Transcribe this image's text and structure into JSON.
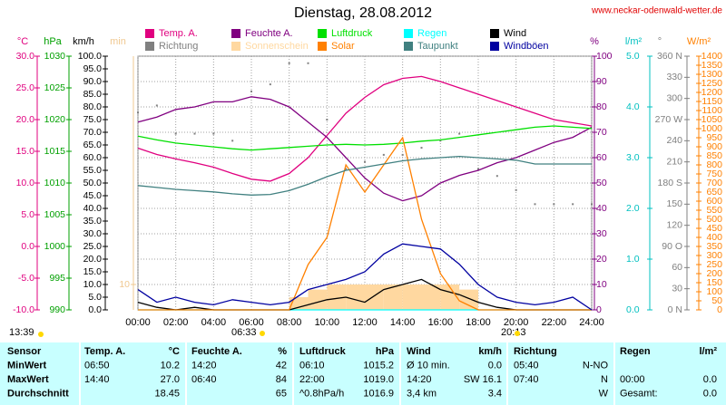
{
  "chart_data": {
    "type": "multi-line",
    "title": "Dienstag, 28.08.2012",
    "xlim": [
      0,
      24
    ],
    "xticks": [
      {
        "value": 0,
        "label": "00:00"
      },
      {
        "value": 2,
        "label": "02:00"
      },
      {
        "value": 4,
        "label": "04:00"
      },
      {
        "value": 6,
        "label": "06:00"
      },
      {
        "value": 8,
        "label": "08:00"
      },
      {
        "value": 10,
        "label": "10:00"
      },
      {
        "value": 12,
        "label": "12:00"
      },
      {
        "value": 14,
        "label": "14:00"
      },
      {
        "value": 16,
        "label": "16:00"
      },
      {
        "value": 18,
        "label": "18:00"
      },
      {
        "value": 20,
        "label": "20:00"
      },
      {
        "value": 22,
        "label": "22:00"
      },
      {
        "value": 24,
        "label": "24:00"
      }
    ],
    "grid": true,
    "x": [
      0,
      1,
      2,
      3,
      4,
      5,
      6,
      7,
      8,
      9,
      10,
      11,
      12,
      13,
      14,
      15,
      16,
      17,
      18,
      19,
      20,
      21,
      22,
      23,
      24
    ],
    "axes": [
      {
        "id": "temp",
        "label": "°C",
        "color": "#e0007f",
        "lim": [
          -10,
          30
        ],
        "ticks": [
          {
            "value": -10,
            "label": "-10.0"
          },
          {
            "value": -5,
            "label": "-5.0"
          },
          {
            "value": 0,
            "label": "0.0"
          },
          {
            "value": 5,
            "label": "5.0"
          },
          {
            "value": 10,
            "label": "10.0"
          },
          {
            "value": 15,
            "label": "15.0"
          },
          {
            "value": 20,
            "label": "20.0"
          },
          {
            "value": 25,
            "label": "25.0"
          },
          {
            "value": 30,
            "label": "30.0"
          }
        ]
      },
      {
        "id": "press",
        "label": "hPa",
        "color": "#00a000",
        "lim": [
          990,
          1030
        ],
        "ticks": [
          990,
          995,
          1000,
          1005,
          1010,
          1015,
          1020,
          1025,
          1030
        ]
      },
      {
        "id": "wind",
        "label": "km/h",
        "color": "#000000",
        "lim": [
          0,
          100
        ],
        "ticks": [
          {
            "value": 0,
            "label": "0.0"
          },
          {
            "value": 5,
            "label": "5.0"
          },
          {
            "value": 10,
            "label": "10.0"
          },
          {
            "value": 15,
            "label": "15.0"
          },
          {
            "value": 20,
            "label": "20.0"
          },
          {
            "value": 25,
            "label": "25.0"
          },
          {
            "value": 30,
            "label": "30.0"
          },
          {
            "value": 35,
            "label": "35.0"
          },
          {
            "value": 40,
            "label": "40.0"
          },
          {
            "value": 45,
            "label": "45.0"
          },
          {
            "value": 50,
            "label": "50.0"
          },
          {
            "value": 55,
            "label": "55.0"
          },
          {
            "value": 60,
            "label": "60.0"
          },
          {
            "value": 65,
            "label": "65.0"
          },
          {
            "value": 70,
            "label": "70.0"
          },
          {
            "value": 75,
            "label": "75.0"
          },
          {
            "value": 80,
            "label": "80.0"
          },
          {
            "value": 85,
            "label": "85.0"
          },
          {
            "value": 90,
            "label": "90.0"
          },
          {
            "value": 95,
            "label": "95.0"
          },
          {
            "value": 100,
            "label": "100.0"
          }
        ]
      },
      {
        "id": "min",
        "label": "min",
        "color": "#f0c890",
        "lim": [
          0,
          100
        ],
        "ticks": [
          10
        ]
      },
      {
        "id": "hum",
        "label": "%",
        "color": "#800080",
        "lim": [
          0,
          100
        ],
        "ticks": [
          0,
          10,
          20,
          30,
          40,
          50,
          60,
          70,
          80,
          90,
          100
        ]
      },
      {
        "id": "rain",
        "label": "l/m²",
        "color": "#00c0c0",
        "lim": [
          0,
          5
        ],
        "ticks": [
          {
            "value": 0,
            "label": "0.0"
          },
          {
            "value": 1,
            "label": "1.0"
          },
          {
            "value": 2,
            "label": "2.0"
          },
          {
            "value": 3,
            "label": "3.0"
          },
          {
            "value": 4,
            "label": "4.0"
          },
          {
            "value": 5,
            "label": "5.0"
          }
        ]
      },
      {
        "id": "dir",
        "label": "°",
        "color": "#808080",
        "lim": [
          0,
          360
        ],
        "ticks": [
          {
            "value": 0,
            "label": "0 N"
          },
          30,
          60,
          {
            "value": 90,
            "label": "90 O"
          },
          120,
          150,
          {
            "value": 180,
            "label": "180 S"
          },
          210,
          240,
          {
            "value": 270,
            "label": "270 W"
          },
          300,
          330,
          {
            "value": 360,
            "label": "360 N"
          }
        ]
      },
      {
        "id": "solar",
        "label": "W/m²",
        "color": "#ff8000",
        "lim": [
          0,
          1400
        ],
        "ticks": [
          0,
          50,
          100,
          150,
          200,
          250,
          300,
          350,
          400,
          450,
          500,
          550,
          600,
          650,
          700,
          750,
          800,
          850,
          900,
          950,
          1000,
          1050,
          1100,
          1150,
          1200,
          1250,
          1300,
          1350,
          1400
        ]
      }
    ],
    "series": [
      {
        "name": "Temp. A.",
        "color": "#e0007f",
        "axis": "temp",
        "style": "line",
        "values": [
          15.5,
          14.5,
          13.8,
          13.2,
          12.5,
          11.5,
          10.6,
          10.3,
          11.5,
          14,
          17.5,
          21,
          23.5,
          25.5,
          26.5,
          26.8,
          26,
          25,
          24,
          23,
          22,
          21,
          20,
          19.5,
          19
        ]
      },
      {
        "name": "Feuchte A.",
        "color": "#800080",
        "axis": "hum",
        "style": "line",
        "values": [
          74,
          76,
          79,
          80,
          82,
          82,
          84,
          83,
          80,
          74,
          68,
          60,
          52,
          46,
          43,
          45,
          50,
          53,
          55,
          58,
          60,
          63,
          66,
          68,
          72
        ]
      },
      {
        "name": "Luftdruck",
        "color": "#00e000",
        "axis": "press",
        "style": "line",
        "values": [
          1017.4,
          1016.8,
          1016.3,
          1016.0,
          1015.7,
          1015.4,
          1015.2,
          1015.4,
          1015.6,
          1015.8,
          1016.0,
          1016.1,
          1016.0,
          1016.1,
          1016.3,
          1016.6,
          1016.8,
          1017.2,
          1017.6,
          1018.0,
          1018.4,
          1018.8,
          1019.0,
          1018.8,
          1018.6
        ]
      },
      {
        "name": "Regen",
        "color": "#00ffff",
        "axis": "rain",
        "style": "line",
        "values": [
          0,
          0,
          0,
          0,
          0,
          0,
          0,
          0,
          0,
          0,
          0,
          0,
          0,
          0,
          0,
          0,
          0,
          0,
          0,
          0,
          0,
          0,
          0,
          0,
          0
        ]
      },
      {
        "name": "Wind",
        "color": "#000000",
        "axis": "wind",
        "style": "line",
        "values": [
          3,
          1,
          0,
          1,
          0,
          0,
          0,
          0,
          0,
          2,
          4,
          5,
          3,
          8,
          10,
          12,
          8,
          6,
          3,
          1,
          0,
          0,
          0,
          0,
          0
        ]
      },
      {
        "name": "Richtung",
        "color": "#808080",
        "axis": "dir",
        "style": "dots",
        "values": [
          280,
          290,
          250,
          250,
          250,
          240,
          310,
          320,
          350,
          350,
          270,
          200,
          210,
          220,
          220,
          230,
          240,
          250,
          200,
          190,
          170,
          150,
          150,
          150,
          150
        ]
      },
      {
        "name": "Sonnenschein",
        "color": "#ffd8a0",
        "axis": "min",
        "style": "bars",
        "values": [
          0,
          0,
          0,
          0,
          0,
          0,
          0,
          0,
          5,
          8,
          10,
          10,
          10,
          10,
          10,
          10,
          10,
          8,
          0,
          0,
          0,
          0,
          0,
          0,
          0
        ]
      },
      {
        "name": "Solar",
        "color": "#ff8000",
        "axis": "solar",
        "style": "line",
        "values": [
          0,
          0,
          0,
          0,
          0,
          0,
          0,
          0,
          0,
          250,
          400,
          800,
          650,
          800,
          950,
          500,
          200,
          50,
          0,
          0,
          0,
          0,
          0,
          0,
          0
        ]
      },
      {
        "name": "Taupunkt",
        "color": "#408080",
        "axis": "temp",
        "style": "line",
        "values": [
          9.6,
          9.3,
          9.0,
          8.8,
          8.6,
          8.3,
          8.1,
          8.2,
          8.8,
          9.8,
          11.0,
          12.0,
          12.5,
          13.0,
          13.5,
          13.8,
          14.0,
          14.2,
          14.0,
          13.8,
          13.6,
          13.0,
          13.0,
          13.0,
          13.0
        ]
      },
      {
        "name": "Windböen",
        "color": "#0000a0",
        "axis": "wind",
        "style": "line",
        "values": [
          8,
          3,
          5,
          3,
          2,
          4,
          3,
          2,
          3,
          8,
          10,
          12,
          15,
          22,
          26,
          25,
          24,
          18,
          10,
          5,
          3,
          2,
          3,
          5,
          0
        ]
      }
    ]
  },
  "source": "www.neckar-odenwald-wetter.de",
  "sun": {
    "daylength": "13:39",
    "sunrise": "06:33",
    "sunset": "20:13"
  },
  "table": {
    "rows": [
      [
        "Sensor",
        "Temp. A.",
        "°C",
        "Feuchte A.",
        "%",
        "Luftdruck",
        "hPa",
        "Wind",
        "km/h",
        "Richtung",
        null,
        "Regen",
        "l/m²"
      ],
      [
        "MinWert",
        "06:50",
        "10.2",
        "14:20",
        "42",
        "06:10",
        "1015.2",
        "Ø 10 min.",
        "0.0",
        "05:40",
        "N-NO",
        null,
        null
      ],
      [
        "MaxWert",
        "14:40",
        "27.0",
        "06:40",
        "84",
        "22:00",
        "1019.0",
        "14:20",
        "SW 16.1",
        "07:40",
        "N",
        "00:00",
        "0.0"
      ],
      [
        "Durchschnitt",
        null,
        "18.45",
        null,
        "65",
        "^0.8hPa/h",
        "1016.9",
        "3,4 km",
        "3.4",
        null,
        "W",
        "Gesamt:",
        "0.0"
      ]
    ]
  }
}
